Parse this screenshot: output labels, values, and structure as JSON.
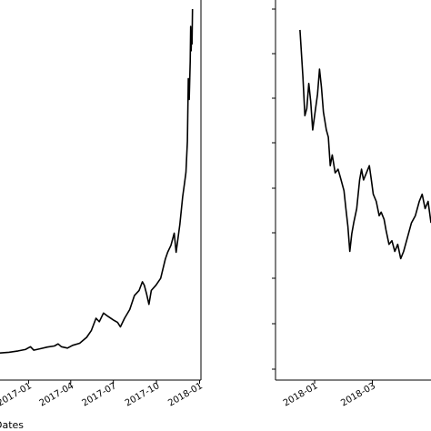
{
  "chart_data": [
    {
      "type": "line",
      "title": "",
      "xlabel": "Dates",
      "ylabel": "",
      "x_ticks": [
        "2017-01",
        "2017-04",
        "2017-07",
        "2017-10",
        "2018-01"
      ],
      "xlim": [
        "2016-11-01",
        "2018-01-04"
      ],
      "ylim": [
        0,
        1
      ],
      "y_values_note": "",
      "grid": false,
      "series": [
        {
          "color": "#000000",
          "points": [
            [
              "2016-11-01",
              0.01
            ],
            [
              "2016-11-20",
              0.012
            ],
            [
              "2016-12-10",
              0.016
            ],
            [
              "2016-12-25",
              0.02
            ],
            [
              "2017-01-05",
              0.028
            ],
            [
              "2017-01-12",
              0.018
            ],
            [
              "2017-01-25",
              0.022
            ],
            [
              "2017-02-10",
              0.027
            ],
            [
              "2017-02-25",
              0.03
            ],
            [
              "2017-03-05",
              0.036
            ],
            [
              "2017-03-12",
              0.028
            ],
            [
              "2017-03-25",
              0.024
            ],
            [
              "2017-04-05",
              0.032
            ],
            [
              "2017-04-20",
              0.038
            ],
            [
              "2017-05-05",
              0.055
            ],
            [
              "2017-05-15",
              0.075
            ],
            [
              "2017-05-25",
              0.11
            ],
            [
              "2017-06-01",
              0.1
            ],
            [
              "2017-06-10",
              0.125
            ],
            [
              "2017-06-20",
              0.115
            ],
            [
              "2017-07-01",
              0.105
            ],
            [
              "2017-07-10",
              0.098
            ],
            [
              "2017-07-16",
              0.085
            ],
            [
              "2017-07-25",
              0.11
            ],
            [
              "2017-08-05",
              0.135
            ],
            [
              "2017-08-15",
              0.175
            ],
            [
              "2017-08-25",
              0.19
            ],
            [
              "2017-09-01",
              0.215
            ],
            [
              "2017-09-05",
              0.205
            ],
            [
              "2017-09-10",
              0.18
            ],
            [
              "2017-09-15",
              0.15
            ],
            [
              "2017-09-20",
              0.19
            ],
            [
              "2017-09-30",
              0.205
            ],
            [
              "2017-10-10",
              0.225
            ],
            [
              "2017-10-20",
              0.28
            ],
            [
              "2017-10-25",
              0.3
            ],
            [
              "2017-11-01",
              0.32
            ],
            [
              "2017-11-08",
              0.355
            ],
            [
              "2017-11-12",
              0.3
            ],
            [
              "2017-11-20",
              0.38
            ],
            [
              "2017-11-26",
              0.46
            ],
            [
              "2017-11-30",
              0.5
            ],
            [
              "2017-12-03",
              0.53
            ],
            [
              "2017-12-06",
              0.62
            ],
            [
              "2017-12-08",
              0.8
            ],
            [
              "2017-12-10",
              0.74
            ],
            [
              "2017-12-12",
              0.85
            ],
            [
              "2017-12-13",
              0.95
            ],
            [
              "2017-12-14",
              0.88
            ],
            [
              "2017-12-15",
              0.92
            ],
            [
              "2017-12-16",
              0.9
            ],
            [
              "2017-12-17",
              1.0
            ]
          ]
        }
      ]
    },
    {
      "type": "line",
      "title": "",
      "xlabel": "",
      "ylabel": "",
      "x_ticks": [
        "2018-01",
        "2018-03"
      ],
      "xlim": [
        "2017-11-22",
        "2018-04-30"
      ],
      "ylim": [
        0,
        1
      ],
      "grid": false,
      "series": [
        {
          "color": "#000000",
          "points": [
            [
              "2017-12-17",
              0.98
            ],
            [
              "2017-12-20",
              0.85
            ],
            [
              "2017-12-22",
              0.74
            ],
            [
              "2017-12-24",
              0.76
            ],
            [
              "2017-12-26",
              0.83
            ],
            [
              "2017-12-28",
              0.78
            ],
            [
              "2017-12-30",
              0.7
            ],
            [
              "2018-01-01",
              0.74
            ],
            [
              "2018-01-04",
              0.8
            ],
            [
              "2018-01-06",
              0.87
            ],
            [
              "2018-01-08",
              0.82
            ],
            [
              "2018-01-10",
              0.75
            ],
            [
              "2018-01-13",
              0.7
            ],
            [
              "2018-01-15",
              0.68
            ],
            [
              "2018-01-17",
              0.6
            ],
            [
              "2018-01-19",
              0.63
            ],
            [
              "2018-01-22",
              0.58
            ],
            [
              "2018-01-25",
              0.59
            ],
            [
              "2018-01-28",
              0.56
            ],
            [
              "2018-01-31",
              0.53
            ],
            [
              "2018-02-02",
              0.48
            ],
            [
              "2018-02-04",
              0.43
            ],
            [
              "2018-02-06",
              0.36
            ],
            [
              "2018-02-08",
              0.41
            ],
            [
              "2018-02-10",
              0.44
            ],
            [
              "2018-02-13",
              0.48
            ],
            [
              "2018-02-16",
              0.56
            ],
            [
              "2018-02-18",
              0.59
            ],
            [
              "2018-02-20",
              0.56
            ],
            [
              "2018-02-23",
              0.58
            ],
            [
              "2018-02-26",
              0.6
            ],
            [
              "2018-02-28",
              0.56
            ],
            [
              "2018-03-02",
              0.52
            ],
            [
              "2018-03-05",
              0.5
            ],
            [
              "2018-03-08",
              0.46
            ],
            [
              "2018-03-10",
              0.47
            ],
            [
              "2018-03-13",
              0.45
            ],
            [
              "2018-03-15",
              0.42
            ],
            [
              "2018-03-18",
              0.38
            ],
            [
              "2018-03-21",
              0.39
            ],
            [
              "2018-03-24",
              0.36
            ],
            [
              "2018-03-27",
              0.38
            ],
            [
              "2018-03-30",
              0.34
            ],
            [
              "2018-04-02",
              0.36
            ],
            [
              "2018-04-06",
              0.4
            ],
            [
              "2018-04-10",
              0.44
            ],
            [
              "2018-04-14",
              0.46
            ],
            [
              "2018-04-18",
              0.5
            ],
            [
              "2018-04-21",
              0.52
            ],
            [
              "2018-04-24",
              0.48
            ],
            [
              "2018-04-27",
              0.5
            ],
            [
              "2018-04-30",
              0.44
            ]
          ]
        }
      ]
    }
  ]
}
